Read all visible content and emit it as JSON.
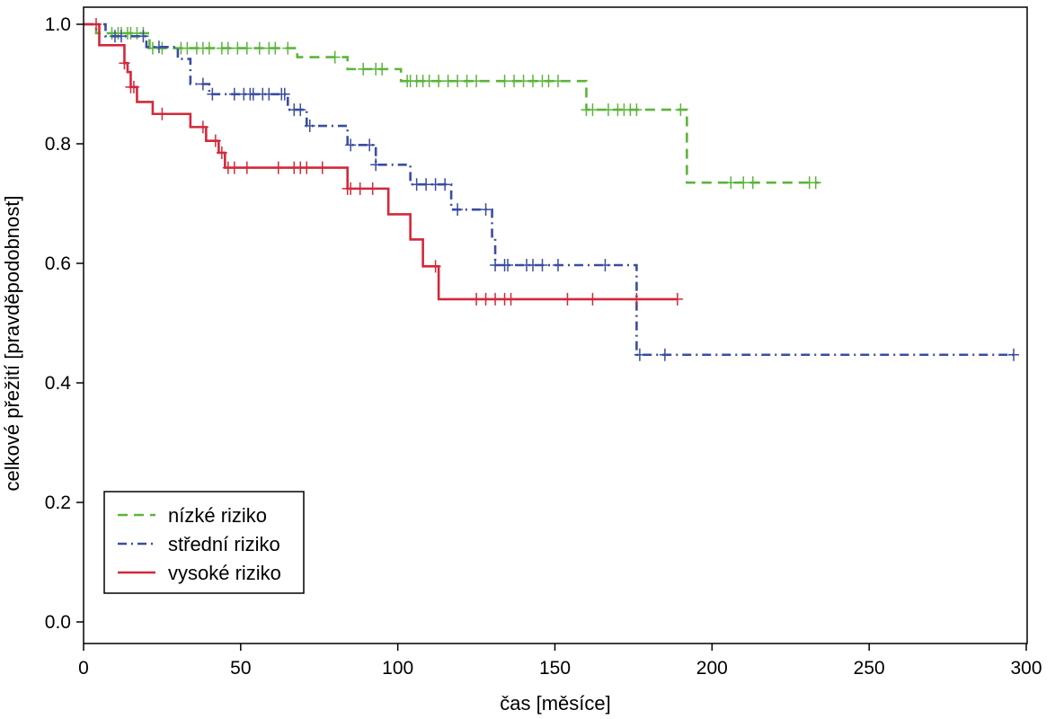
{
  "chart_data": {
    "type": "line",
    "title": "",
    "xlabel": "čas [měsíce]",
    "ylabel": "celkové přežití [pravděpodobnost]",
    "xlim": [
      0,
      300
    ],
    "ylim": [
      0,
      1.0
    ],
    "xticks": [
      "0",
      "50",
      "100",
      "150",
      "200",
      "250",
      "300"
    ],
    "yticks": [
      "0.0",
      "0.2",
      "0.4",
      "0.6",
      "0.8",
      "1.0"
    ],
    "grid": false,
    "legend_position": "bottom-left",
    "series": [
      {
        "name": "nízké riziko",
        "color": "#5bb53a",
        "style": "dashed",
        "steps": [
          [
            0,
            1.0
          ],
          [
            4,
            0.985
          ],
          [
            21,
            0.96
          ],
          [
            68,
            0.945
          ],
          [
            84,
            0.925
          ],
          [
            101,
            0.905
          ],
          [
            160,
            0.857
          ],
          [
            192,
            0.735
          ]
        ],
        "end": 234,
        "censored": [
          9,
          11,
          12,
          14,
          15,
          17,
          19,
          22,
          25,
          31,
          33,
          36,
          38,
          40,
          44,
          46,
          49,
          52,
          56,
          59,
          61,
          65,
          80,
          89,
          93,
          95,
          103,
          104,
          106,
          108,
          110,
          113,
          116,
          119,
          122,
          125,
          134,
          137,
          140,
          143,
          146,
          148,
          151,
          160,
          162,
          167,
          170,
          172,
          174,
          176,
          190,
          206,
          210,
          213,
          231,
          233
        ]
      },
      {
        "name": "střední riziko",
        "color": "#3a4da0",
        "style": "dash-dot",
        "steps": [
          [
            0,
            1.0
          ],
          [
            7,
            0.98
          ],
          [
            20,
            0.962
          ],
          [
            30,
            0.942
          ],
          [
            34,
            0.9
          ],
          [
            40,
            0.883
          ],
          [
            65,
            0.857
          ],
          [
            71,
            0.83
          ],
          [
            84,
            0.798
          ],
          [
            93,
            0.765
          ],
          [
            104,
            0.732
          ],
          [
            117,
            0.69
          ],
          [
            130,
            0.645
          ],
          [
            131,
            0.597
          ],
          [
            176,
            0.447
          ]
        ],
        "end": 297,
        "censored": [
          10,
          12,
          19,
          24,
          38,
          41,
          48,
          51,
          53,
          54,
          57,
          59,
          63,
          64,
          67,
          69,
          72,
          85,
          91,
          93,
          106,
          109,
          112,
          115,
          119,
          128,
          131,
          134,
          135,
          141,
          143,
          146,
          151,
          166,
          177,
          185,
          296
        ]
      },
      {
        "name": "vysoké riziko",
        "color": "#d3283b",
        "style": "solid",
        "steps": [
          [
            0,
            1.0
          ],
          [
            5,
            0.965
          ],
          [
            13,
            0.935
          ],
          [
            14,
            0.92
          ],
          [
            15,
            0.895
          ],
          [
            17,
            0.87
          ],
          [
            22,
            0.85
          ],
          [
            34,
            0.828
          ],
          [
            39,
            0.805
          ],
          [
            43,
            0.785
          ],
          [
            45,
            0.76
          ],
          [
            84,
            0.725
          ],
          [
            97,
            0.682
          ],
          [
            104,
            0.64
          ],
          [
            108,
            0.595
          ],
          [
            113,
            0.54
          ]
        ],
        "end": 189,
        "censored": [
          4,
          13,
          15,
          16,
          25,
          38,
          42,
          44,
          46,
          48,
          52,
          62,
          67,
          69,
          71,
          76,
          84,
          85,
          88,
          92,
          112,
          125,
          128,
          131,
          134,
          136,
          154,
          162,
          176,
          189
        ]
      }
    ]
  }
}
